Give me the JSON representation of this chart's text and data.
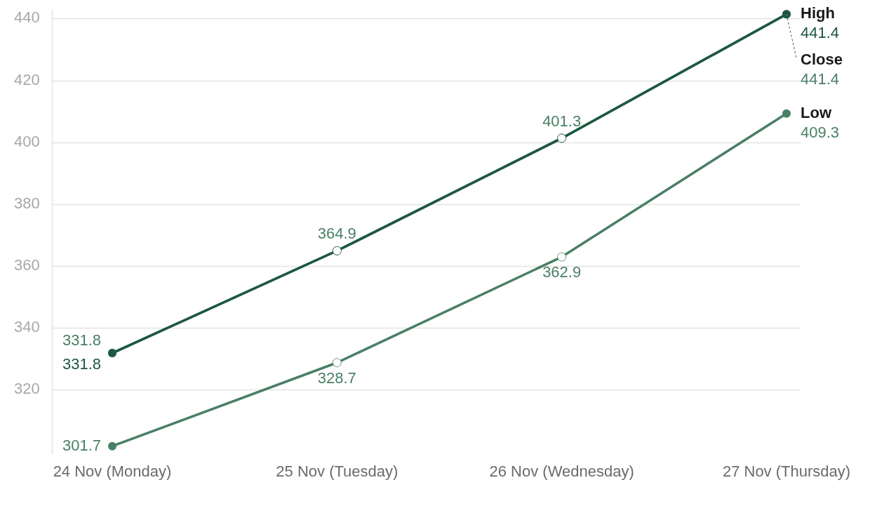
{
  "chart_data": {
    "type": "line",
    "categories": [
      "24 Nov (Monday)",
      "25 Nov (Tuesday)",
      "26 Nov (Wednesday)",
      "27 Nov (Thursday)"
    ],
    "series": [
      {
        "name": "High",
        "color": "#1e5840",
        "values": [
          331.8,
          364.9,
          401.3,
          441.4
        ],
        "value_labels": [
          "331.8",
          null,
          null,
          "441.4"
        ]
      },
      {
        "name": "Close",
        "color": "#4a7f66",
        "values": [
          331.8,
          364.9,
          401.3,
          441.4
        ],
        "value_labels": [
          "331.8",
          "364.9",
          "401.3",
          "441.4"
        ]
      },
      {
        "name": "Low",
        "color": "#4a7f66",
        "values": [
          301.7,
          328.7,
          362.9,
          409.3
        ],
        "value_labels": [
          "301.7",
          "328.7",
          "362.9",
          "409.3"
        ]
      }
    ],
    "ylim": [
      299,
      443
    ],
    "yticks": [
      320,
      340,
      360,
      380,
      400,
      420,
      440
    ],
    "grid": "y",
    "legend": false,
    "marker": "circle",
    "line_style": "solid"
  }
}
